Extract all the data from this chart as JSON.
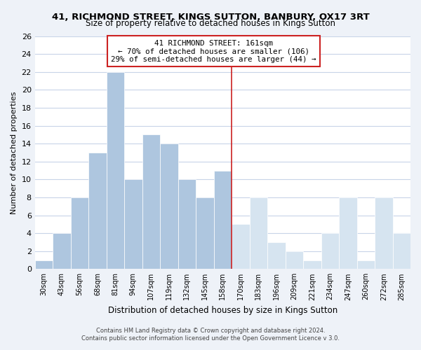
{
  "title1": "41, RICHMOND STREET, KINGS SUTTON, BANBURY, OX17 3RT",
  "title2": "Size of property relative to detached houses in Kings Sutton",
  "xlabel": "Distribution of detached houses by size in Kings Sutton",
  "ylabel": "Number of detached properties",
  "categories": [
    "30sqm",
    "43sqm",
    "56sqm",
    "68sqm",
    "81sqm",
    "94sqm",
    "107sqm",
    "119sqm",
    "132sqm",
    "145sqm",
    "158sqm",
    "170sqm",
    "183sqm",
    "196sqm",
    "209sqm",
    "221sqm",
    "234sqm",
    "247sqm",
    "260sqm",
    "272sqm",
    "285sqm"
  ],
  "values": [
    1,
    4,
    8,
    13,
    22,
    10,
    15,
    14,
    10,
    8,
    11,
    5,
    8,
    3,
    2,
    1,
    4,
    8,
    1,
    8,
    4
  ],
  "bar_color_left": "#aec6df",
  "bar_color_right": "#d6e4f0",
  "subject_line_index": 10,
  "subject_label": "41 RICHMOND STREET: 161sqm",
  "annotation_line1": "← 70% of detached houses are smaller (106)",
  "annotation_line2": "29% of semi-detached houses are larger (44) →",
  "annotation_box_color": "#ffffff",
  "annotation_box_edge": "#cc2222",
  "subject_line_color": "#cc2222",
  "ylim": [
    0,
    26
  ],
  "yticks": [
    0,
    2,
    4,
    6,
    8,
    10,
    12,
    14,
    16,
    18,
    20,
    22,
    24,
    26
  ],
  "footer1": "Contains HM Land Registry data © Crown copyright and database right 2024.",
  "footer2": "Contains public sector information licensed under the Open Government Licence v 3.0.",
  "bg_color": "#eef2f8",
  "plot_bg_color": "#ffffff",
  "grid_color": "#c8d4e8",
  "title1_fontsize": 9.5,
  "title2_fontsize": 8.5
}
